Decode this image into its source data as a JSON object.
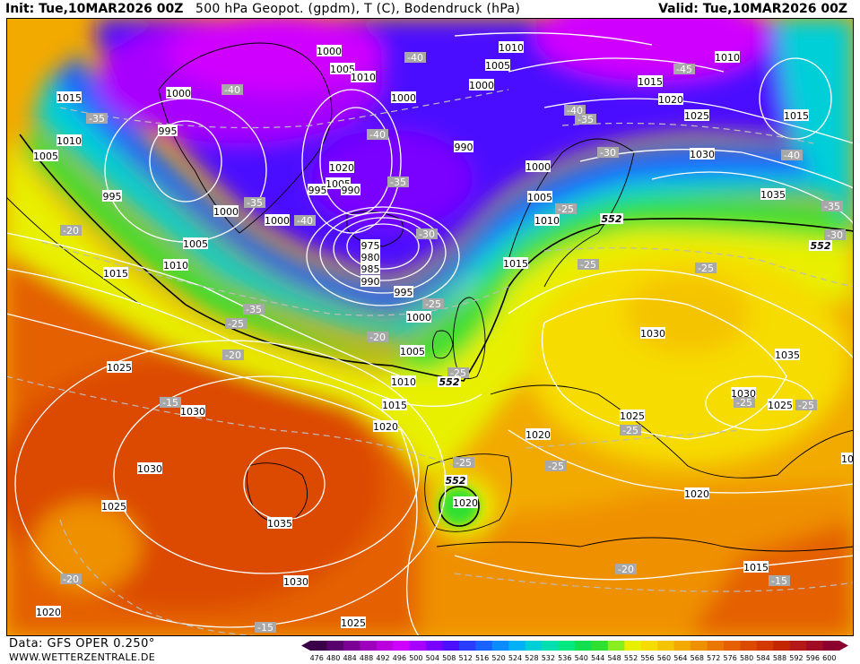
{
  "header": {
    "init": "Init: Tue,10MAR2026 00Z",
    "title": "500 hPa Geopot. (gpdm), T (C), Bodendruck (hPa)",
    "valid": "Valid: Tue,10MAR2026 00Z"
  },
  "footer": {
    "data": "Data: GFS OPER 0.250°",
    "site": "WWW.WETTERZENTRALE.DE"
  },
  "legend": {
    "values": [
      "476",
      "480",
      "484",
      "488",
      "492",
      "496",
      "500",
      "504",
      "508",
      "512",
      "516",
      "520",
      "524",
      "528",
      "532",
      "536",
      "540",
      "544",
      "548",
      "552",
      "556",
      "560",
      "564",
      "568",
      "572",
      "576",
      "580",
      "584",
      "588",
      "592",
      "596",
      "600"
    ],
    "colors": [
      "#3a0048",
      "#58006e",
      "#7a0096",
      "#9c00bc",
      "#bb00e0",
      "#d000ff",
      "#a800ff",
      "#7a00ff",
      "#4c10ff",
      "#2a3cff",
      "#1a62ff",
      "#0a8cff",
      "#00b2f5",
      "#00cfd8",
      "#00dfb0",
      "#00e880",
      "#10e050",
      "#30e030",
      "#88ee20",
      "#e8f000",
      "#f6dc00",
      "#f5c400",
      "#f2aa00",
      "#ef9000",
      "#ea7800",
      "#e46000",
      "#dc4a00",
      "#d23800",
      "#c42600",
      "#b41818",
      "#a00c24",
      "#8c0030"
    ]
  },
  "pressure_labels": [
    "1000",
    "1005",
    "1010",
    "1015",
    "1020",
    "1025",
    "1030",
    "1035",
    "995",
    "990",
    "985",
    "980",
    "975"
  ],
  "temp_labels": [
    "-45",
    "-40",
    "-35",
    "-30",
    "-25",
    "-20",
    "-15"
  ],
  "geopot_label": "552",
  "colors": {
    "cold_core": "#d000ff",
    "polar": "#4c10ff",
    "mid": "#00cfd8",
    "green": "#30e030",
    "yellow": "#e8f000",
    "orange": "#ef9000",
    "warm": "#dc4a00"
  }
}
